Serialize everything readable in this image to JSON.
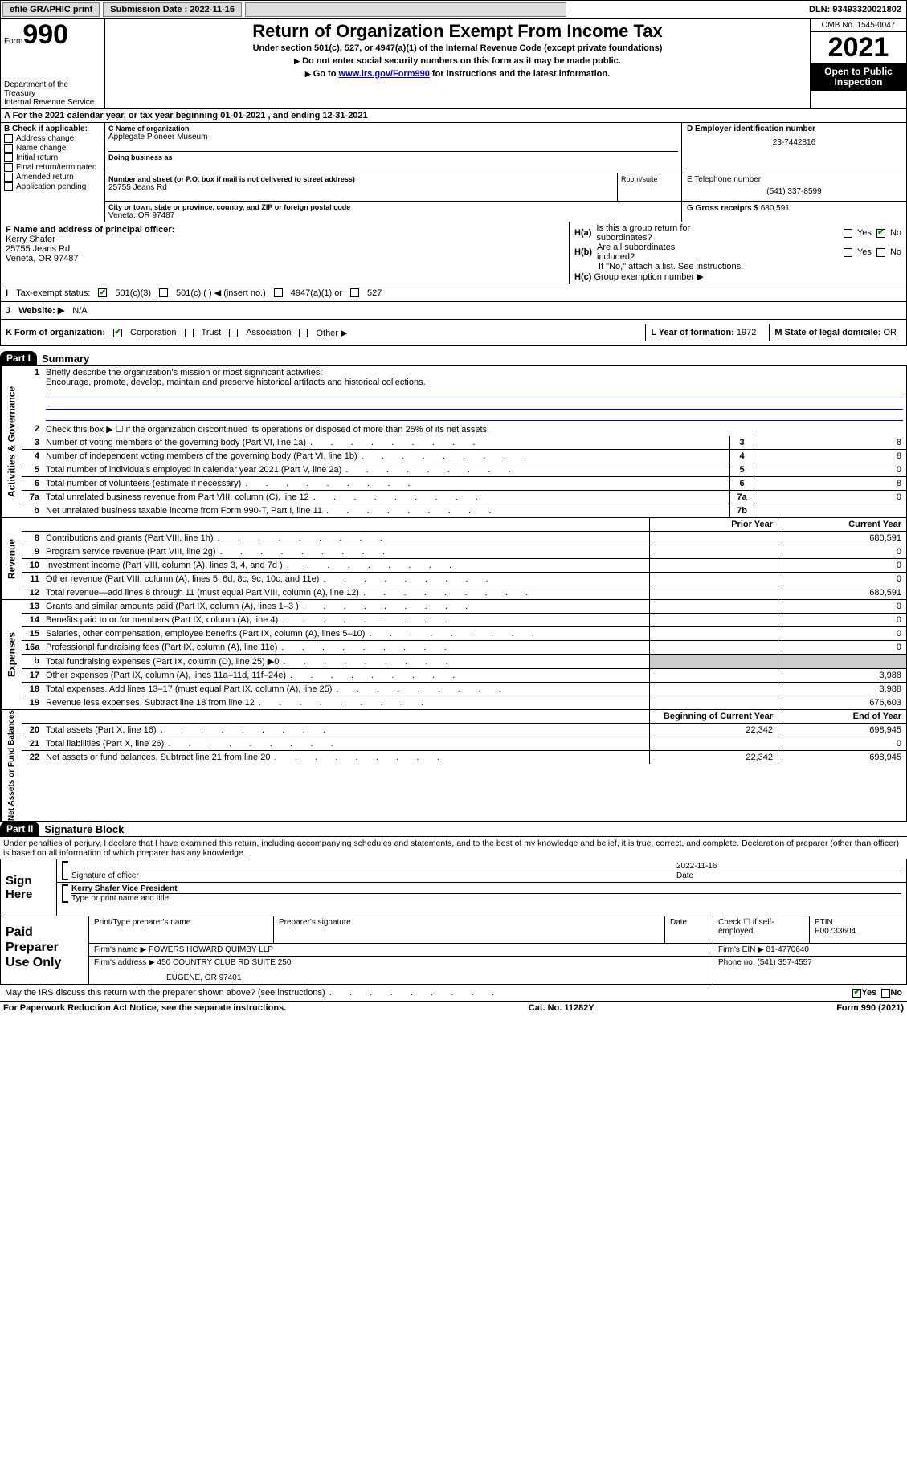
{
  "colors": {
    "link": "#0000cc",
    "mission_rule": "#0033aa",
    "check_green": "#0a7a0a",
    "grey_fill": "#cccccc",
    "black": "#000000"
  },
  "topbar": {
    "efile": "efile GRAPHIC print",
    "submission_label": "Submission Date : 2022-11-16",
    "dln": "DLN: 93493320021802"
  },
  "header": {
    "form_word": "Form",
    "form_number": "990",
    "title": "Return of Organization Exempt From Income Tax",
    "subtitle": "Under section 501(c), 527, or 4947(a)(1) of the Internal Revenue Code (except private foundations)",
    "warn1": "Do not enter social security numbers on this form as it may be made public.",
    "warn2_pre": "Go to ",
    "warn2_link": "www.irs.gov/Form990",
    "warn2_post": " for instructions and the latest information.",
    "omb": "OMB No. 1545-0047",
    "year": "2021",
    "open_public": "Open to Public Inspection",
    "dept": "Department of the Treasury",
    "irs": "Internal Revenue Service"
  },
  "row_a": {
    "text_pre": "A For the 2021 calendar year, or tax year beginning ",
    "begin": "01-01-2021",
    "mid": " , and ending ",
    "end": "12-31-2021"
  },
  "section_b": {
    "header": "B Check if applicable:",
    "items": [
      {
        "label": "Address change",
        "checked": false
      },
      {
        "label": "Name change",
        "checked": false
      },
      {
        "label": "Initial return",
        "checked": false
      },
      {
        "label": "Final return/terminated",
        "checked": false
      },
      {
        "label": "Amended return",
        "checked": false
      },
      {
        "label": "Application pending",
        "checked": false
      }
    ]
  },
  "section_c": {
    "name_lbl": "C Name of organization",
    "name": "Applegate Pioneer Museum",
    "dba_lbl": "Doing business as",
    "addr_lbl": "Number and street (or P.O. box if mail is not delivered to street address)",
    "room_lbl": "Room/suite",
    "addr": "25755 Jeans Rd",
    "city_lbl": "City or town, state or province, country, and ZIP or foreign postal code",
    "city": "Veneta, OR  97487"
  },
  "section_d": {
    "lbl": "D Employer identification number",
    "val": "23-7442816"
  },
  "section_e": {
    "lbl": "E Telephone number",
    "val": "(541) 337-8599"
  },
  "section_g": {
    "lbl": "G Gross receipts $",
    "val": "680,591"
  },
  "section_f": {
    "lbl": "F Name and address of principal officer:",
    "name": "Kerry Shafer",
    "addr1": "25755 Jeans Rd",
    "addr2": "Veneta, OR  97487"
  },
  "section_h": {
    "a_lbl": "H(a)",
    "a_text1": "Is this a group return for",
    "a_text2": "subordinates?",
    "a_yes": "Yes",
    "a_no": "No",
    "a_checked": "no",
    "b_lbl": "H(b)",
    "b_text1": "Are all subordinates",
    "b_text2": "included?",
    "b_note": "If \"No,\" attach a list. See instructions.",
    "c_lbl": "H(c)",
    "c_text": "Group exemption number ▶"
  },
  "row_i": {
    "lbl": "I",
    "text": "Tax-exempt status:",
    "opts": {
      "c3": "501(c)(3)",
      "c_blank": "501(c) (    ) ◀ (insert no.)",
      "a1": "4947(a)(1) or",
      "527": "527"
    },
    "checked": "c3"
  },
  "row_j": {
    "lbl": "J",
    "text": "Website: ▶",
    "val": "N/A"
  },
  "row_k": {
    "lbl": "K Form of organization:",
    "opts": [
      "Corporation",
      "Trust",
      "Association",
      "Other ▶"
    ],
    "checked_index": 0,
    "l_lbl": "L Year of formation:",
    "l_val": "1972",
    "m_lbl": "M State of legal domicile:",
    "m_val": "OR"
  },
  "part1": {
    "part": "Part I",
    "title": "Summary",
    "mission_lbl": "Briefly describe the organization's mission or most significant activities:",
    "mission": "Encourage, promote, develop, maintain and preserve historical artifacts and historical collections.",
    "line2": "Check this box ▶ ☐  if the organization discontinued its operations or disposed of more than 25% of its net assets.",
    "sidebars": {
      "gov": "Activities & Governance",
      "rev": "Revenue",
      "exp": "Expenses",
      "net": "Net Assets or Fund Balances"
    },
    "col_headers": {
      "prior": "Prior Year",
      "current": "Current Year",
      "begin": "Beginning of Current Year",
      "end": "End of Year"
    },
    "rows_gov": [
      {
        "n": "3",
        "t": "Number of voting members of the governing body (Part VI, line 1a)",
        "box": "3",
        "v": "8"
      },
      {
        "n": "4",
        "t": "Number of independent voting members of the governing body (Part VI, line 1b)",
        "box": "4",
        "v": "8"
      },
      {
        "n": "5",
        "t": "Total number of individuals employed in calendar year 2021 (Part V, line 2a)",
        "box": "5",
        "v": "0"
      },
      {
        "n": "6",
        "t": "Total number of volunteers (estimate if necessary)",
        "box": "6",
        "v": "8"
      },
      {
        "n": "7a",
        "t": "Total unrelated business revenue from Part VIII, column (C), line 12",
        "box": "7a",
        "v": "0"
      },
      {
        "n": "b",
        "t": "Net unrelated business taxable income from Form 990-T, Part I, line 11",
        "box": "7b",
        "v": ""
      }
    ],
    "rows_rev": [
      {
        "n": "8",
        "t": "Contributions and grants (Part VIII, line 1h)",
        "p": "",
        "c": "680,591"
      },
      {
        "n": "9",
        "t": "Program service revenue (Part VIII, line 2g)",
        "p": "",
        "c": "0"
      },
      {
        "n": "10",
        "t": "Investment income (Part VIII, column (A), lines 3, 4, and 7d )",
        "p": "",
        "c": "0"
      },
      {
        "n": "11",
        "t": "Other revenue (Part VIII, column (A), lines 5, 6d, 8c, 9c, 10c, and 11e)",
        "p": "",
        "c": "0"
      },
      {
        "n": "12",
        "t": "Total revenue—add lines 8 through 11 (must equal Part VIII, column (A), line 12)",
        "p": "",
        "c": "680,591"
      }
    ],
    "rows_exp": [
      {
        "n": "13",
        "t": "Grants and similar amounts paid (Part IX, column (A), lines 1–3 )",
        "p": "",
        "c": "0"
      },
      {
        "n": "14",
        "t": "Benefits paid to or for members (Part IX, column (A), line 4)",
        "p": "",
        "c": "0"
      },
      {
        "n": "15",
        "t": "Salaries, other compensation, employee benefits (Part IX, column (A), lines 5–10)",
        "p": "",
        "c": "0"
      },
      {
        "n": "16a",
        "t": "Professional fundraising fees (Part IX, column (A), line 11e)",
        "p": "",
        "c": "0"
      },
      {
        "n": "b",
        "t": "Total fundraising expenses (Part IX, column (D), line 25) ▶0",
        "p": "grey",
        "c": "grey"
      },
      {
        "n": "17",
        "t": "Other expenses (Part IX, column (A), lines 11a–11d, 11f–24e)",
        "p": "",
        "c": "3,988"
      },
      {
        "n": "18",
        "t": "Total expenses. Add lines 13–17 (must equal Part IX, column (A), line 25)",
        "p": "",
        "c": "3,988"
      },
      {
        "n": "19",
        "t": "Revenue less expenses. Subtract line 18 from line 12",
        "p": "",
        "c": "676,603"
      }
    ],
    "rows_net": [
      {
        "n": "20",
        "t": "Total assets (Part X, line 16)",
        "p": "22,342",
        "c": "698,945"
      },
      {
        "n": "21",
        "t": "Total liabilities (Part X, line 26)",
        "p": "",
        "c": "0"
      },
      {
        "n": "22",
        "t": "Net assets or fund balances. Subtract line 21 from line 20",
        "p": "22,342",
        "c": "698,945"
      }
    ]
  },
  "part2": {
    "part": "Part II",
    "title": "Signature Block",
    "declare": "Under penalties of perjury, I declare that I have examined this return, including accompanying schedules and statements, and to the best of my knowledge and belief, it is true, correct, and complete. Declaration of preparer (other than officer) is based on all information of which preparer has any knowledge.",
    "sign_here": "Sign Here",
    "sig_officer_lbl": "Signature of officer",
    "date_lbl": "Date",
    "sig_date": "2022-11-16",
    "officer_name": "Kerry Shafer  Vice President",
    "officer_lbl": "Type or print name and title",
    "paid": "Paid Preparer Use Only",
    "prep_name_lbl": "Print/Type preparer's name",
    "prep_sig_lbl": "Preparer's signature",
    "prep_date_lbl": "Date",
    "check_self": "Check ☐ if self-employed",
    "ptin_lbl": "PTIN",
    "ptin": "P00733604",
    "firm_name_lbl": "Firm's name    ▶",
    "firm_name": "POWERS HOWARD QUIMBY LLP",
    "firm_ein_lbl": "Firm's EIN ▶",
    "firm_ein": "81-4770640",
    "firm_addr_lbl": "Firm's address ▶",
    "firm_addr1": "450 COUNTRY CLUB RD SUITE 250",
    "firm_addr2": "EUGENE, OR  97401",
    "phone_lbl": "Phone no.",
    "phone": "(541) 357-4557",
    "discuss": "May the IRS discuss this return with the preparer shown above? (see instructions)",
    "discuss_yes": "Yes",
    "discuss_no": "No",
    "discuss_checked": "yes"
  },
  "footer": {
    "left": "For Paperwork Reduction Act Notice, see the separate instructions.",
    "mid": "Cat. No. 11282Y",
    "right_pre": "Form ",
    "right_b": "990",
    "right_post": " (2021)"
  }
}
